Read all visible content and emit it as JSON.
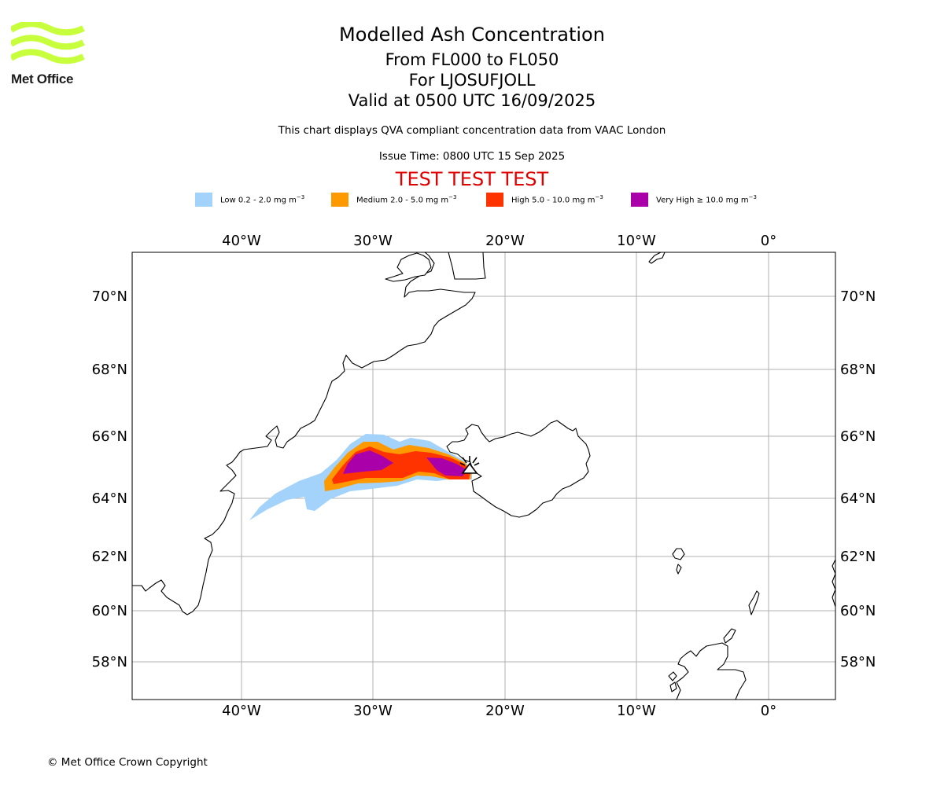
{
  "logo": {
    "text": "Met Office",
    "color": "#c8ff3c"
  },
  "header": {
    "title": "Modelled Ash Concentration",
    "subtitle_levels": "From FL000 to FL050",
    "subtitle_volcano": "For LJOSUFJOLL",
    "subtitle_valid": "Valid at 0500 UTC 16/09/2025",
    "description": "This chart displays QVA compliant concentration data from VAAC London",
    "issue_time": "Issue Time: 0800 UTC 15 Sep 2025",
    "test_banner": "TEST TEST TEST"
  },
  "legend": [
    {
      "label": "Low 0.2 - 2.0 mg m",
      "exponent": "−3",
      "color": "#a3d3fb"
    },
    {
      "label": "Medium 2.0 - 5.0 mg m",
      "exponent": "−3",
      "color": "#ff9900"
    },
    {
      "label": "High 5.0 - 10.0 mg m",
      "exponent": "−3",
      "color": "#ff3300"
    },
    {
      "label": "Very High ≥ 10.0 mg m",
      "exponent": "−3",
      "color": "#aa00aa"
    }
  ],
  "map": {
    "lon_range": [
      -48,
      5
    ],
    "lat_range": [
      57,
      71.5
    ],
    "lon_labels": [
      "40°W",
      "30°W",
      "20°W",
      "10°W",
      "0°"
    ],
    "lat_labels": [
      "70°N",
      "68°N",
      "66°N",
      "64°N",
      "62°N",
      "60°N",
      "58°N"
    ],
    "grid": true,
    "volcano_marker": "volcano-icon"
  },
  "footer": {
    "copyright": "© Met Office Crown Copyright"
  }
}
